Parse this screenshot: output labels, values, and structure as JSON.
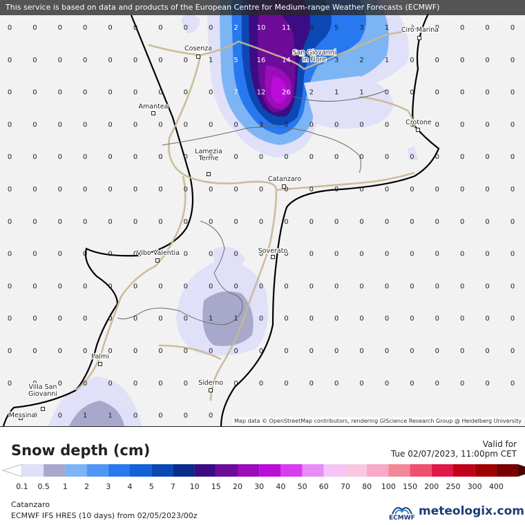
{
  "banner": "This service is based on data and products of the European Centre for Medium-range Weather Forecasts (ECMWF)",
  "attribution": "Map data © OpenStreetMap contributors, rendering GIScience Research Group @ Heidelberg University",
  "cities": [
    {
      "name": "Cosenza"
    },
    {
      "name": "San Giovanni in Fiore"
    },
    {
      "name": "Cirò Marina"
    },
    {
      "name": "Amantea"
    },
    {
      "name": "Crotone"
    },
    {
      "name": "Lamezia Terme"
    },
    {
      "name": "Catanzaro"
    },
    {
      "name": "Soverato"
    },
    {
      "name": "Vibo Valentia"
    },
    {
      "name": "Palmi"
    },
    {
      "name": "Siderno"
    },
    {
      "name": "Villa San Giovanni"
    },
    {
      "name": "Messina"
    }
  ],
  "grid_values": [
    [
      "0",
      "0",
      "0",
      "0",
      "0",
      "0",
      "0",
      "0",
      "0",
      "2",
      "10",
      "11",
      "8",
      "5",
      "3",
      "1",
      "0",
      "0",
      "0",
      "0",
      "0"
    ],
    [
      "0",
      "0",
      "0",
      "0",
      "0",
      "0",
      "0",
      "0",
      "1",
      "5",
      "16",
      "14",
      "5",
      "3",
      "2",
      "1",
      "0",
      "0",
      "0",
      "0",
      "0"
    ],
    [
      "0",
      "0",
      "0",
      "0",
      "0",
      "0",
      "0",
      "0",
      "0",
      "7",
      "12",
      "26",
      "2",
      "1",
      "1",
      "0",
      "0",
      "0",
      "0",
      "0",
      "0"
    ],
    [
      "0",
      "0",
      "0",
      "0",
      "0",
      "0",
      "0",
      "0",
      "0",
      "0",
      "3",
      "0",
      "0",
      "0",
      "0",
      "0",
      "0",
      "0",
      "0",
      "0",
      "0"
    ],
    [
      "0",
      "0",
      "0",
      "0",
      "0",
      "0",
      "0",
      "0",
      "0",
      "0",
      "0",
      "0",
      "0",
      "0",
      "0",
      "0",
      "0",
      "0",
      "0",
      "0",
      "0"
    ],
    [
      "0",
      "0",
      "0",
      "0",
      "0",
      "0",
      "0",
      "0",
      "0",
      "0",
      "0",
      "0",
      "0",
      "0",
      "0",
      "0",
      "0",
      "0",
      "0",
      "0",
      "0"
    ],
    [
      "0",
      "0",
      "0",
      "0",
      "0",
      "0",
      "0",
      "0",
      "0",
      "0",
      "0",
      "0",
      "0",
      "0",
      "0",
      "0",
      "0",
      "0",
      "0",
      "0",
      "0"
    ],
    [
      "0",
      "0",
      "0",
      "0",
      "0",
      "0",
      "0",
      "0",
      "0",
      "0",
      "0",
      "0",
      "0",
      "0",
      "0",
      "0",
      "0",
      "0",
      "0",
      "0",
      "0"
    ],
    [
      "0",
      "0",
      "0",
      "0",
      "0",
      "0",
      "0",
      "0",
      "0",
      "0",
      "0",
      "0",
      "0",
      "0",
      "0",
      "0",
      "0",
      "0",
      "0",
      "0",
      "0"
    ],
    [
      "0",
      "0",
      "0",
      "0",
      "0",
      "0",
      "0",
      "0",
      "1",
      "1",
      "0",
      "0",
      "0",
      "0",
      "0",
      "0",
      "0",
      "0",
      "0",
      "0",
      "0"
    ],
    [
      "0",
      "0",
      "0",
      "0",
      "0",
      "0",
      "0",
      "0",
      "0",
      "0",
      "0",
      "0",
      "0",
      "0",
      "0",
      "0",
      "0",
      "0",
      "0",
      "0",
      "0"
    ],
    [
      "0",
      "0",
      "0",
      "0",
      "0",
      "0",
      "0",
      "0",
      "0",
      "0",
      "0",
      "0",
      "0",
      "0",
      "0",
      "0",
      "0",
      "0",
      "0",
      "0",
      "0"
    ],
    [
      "0",
      "0",
      "0",
      "1",
      "1",
      "0",
      "0",
      "0",
      "0",
      "",
      "",
      "",
      "",
      "",
      "",
      "",
      "",
      "",
      "",
      "",
      ""
    ]
  ],
  "legend": {
    "title": "Snow depth (cm)",
    "valid_label": "Valid for",
    "valid_time": "Tue 02/07/2023, 11:00pm CET",
    "levels": [
      "0.1",
      "0.5",
      "1",
      "2",
      "3",
      "4",
      "5",
      "7",
      "10",
      "15",
      "20",
      "30",
      "40",
      "50",
      "60",
      "70",
      "80",
      "100",
      "150",
      "200",
      "250",
      "300",
      "400"
    ],
    "colors": [
      "#e0e0f8",
      "#a8a8cc",
      "#7cb4f4",
      "#5096f4",
      "#2878f0",
      "#1460d8",
      "#0c48b4",
      "#0a2c8c",
      "#3c0c84",
      "#6c0c98",
      "#9c0cb8",
      "#bc0cd8",
      "#d83cf0",
      "#e88cf8",
      "#f4c4f8",
      "#f8c8e0",
      "#f8a8c8",
      "#f48898",
      "#f05070",
      "#e01848",
      "#c00018",
      "#a00000",
      "#780000",
      "#4c0000"
    ]
  },
  "footer": {
    "location": "Catanzaro",
    "model": "ECMWF IFS HRES (10 days) from 02/05/2023/00z"
  },
  "logos": {
    "ecmwf": "ECMWF",
    "meteologix": "meteologix.com"
  }
}
